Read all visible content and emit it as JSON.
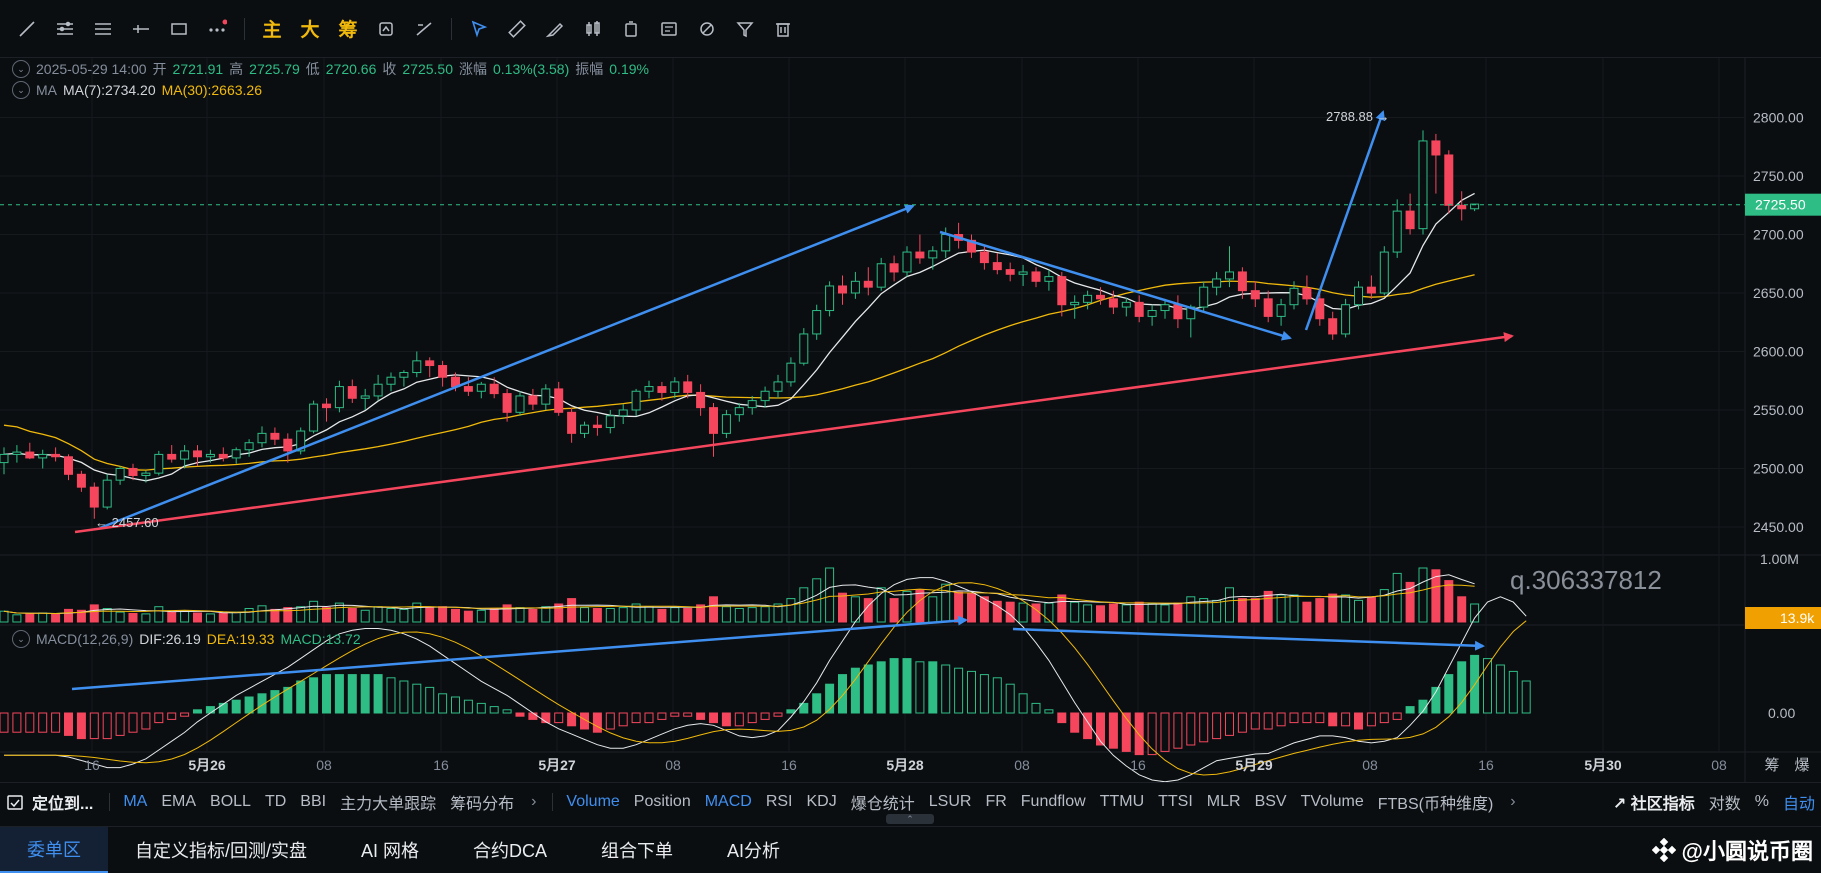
{
  "toolbar": {
    "icons": [
      "trend-line-icon",
      "fib-icon",
      "parallel-icon",
      "horizontal-ray-icon",
      "rectangle-icon",
      "more-icon"
    ],
    "text_tools": [
      "主",
      "大",
      "筹"
    ],
    "icons2": [
      "magnet-icon",
      "measure-icon",
      "select-icon",
      "ruler-icon",
      "brush-icon",
      "candle-icon",
      "bag-icon",
      "note-icon",
      "link-icon",
      "filter-icon",
      "trash-icon"
    ]
  },
  "info": {
    "datetime": "2025-05-29 14:00",
    "open_label": "开",
    "open": "2721.91",
    "high_label": "高",
    "high": "2725.79",
    "low_label": "低",
    "low": "2720.66",
    "close_label": "收",
    "close": "2725.50",
    "change_label": "涨幅",
    "change": "0.13%(3.58)",
    "amp_label": "振幅",
    "amp": "0.19%",
    "ma_label": "MA",
    "ma7": "MA(7):2734.20",
    "ma30": "MA(30):2663.26",
    "macd_label": "MACD(12,26,9)",
    "dif": "DIF:26.19",
    "dea": "DEA:19.33",
    "macd": "MACD:13.72"
  },
  "chart_data": {
    "type": "candlestick",
    "interval": "1h",
    "price_axis": {
      "ticks": [
        2450,
        2500,
        2550,
        2600,
        2650,
        2700,
        2750,
        2800
      ],
      "labels": [
        "2450.00",
        "2500.00",
        "2550.00",
        "2600.00",
        "2650.00",
        "2700.00",
        "2750.00",
        "2800.00"
      ],
      "range": [
        2432,
        2815
      ]
    },
    "volume_axis": {
      "ticks": [
        "1.00M"
      ],
      "range": [
        0,
        1000000
      ]
    },
    "macd_axis": {
      "ticks": [
        "0.00"
      ]
    },
    "current_price": "2725.50",
    "current_volume": "13.9k",
    "high_marker": "2788.88",
    "low_marker": "2457.60",
    "watermark": "q.306337812",
    "x_labels": [
      "16",
      "5月26",
      "08",
      "16",
      "5月27",
      "08",
      "16",
      "5月28",
      "08",
      "16",
      "5月29",
      "08",
      "16",
      "5月30",
      "08"
    ],
    "right_labels": [
      "筹",
      "爆"
    ],
    "candles": [
      [
        2505,
        2518,
        2495,
        2512
      ],
      [
        2512,
        2520,
        2505,
        2514
      ],
      [
        2514,
        2522,
        2508,
        2509
      ],
      [
        2509,
        2516,
        2500,
        2512
      ],
      [
        2512,
        2518,
        2506,
        2510
      ],
      [
        2510,
        2512,
        2490,
        2495
      ],
      [
        2495,
        2498,
        2480,
        2484
      ],
      [
        2484,
        2488,
        2457,
        2467
      ],
      [
        2467,
        2495,
        2465,
        2490
      ],
      [
        2490,
        2502,
        2486,
        2500
      ],
      [
        2500,
        2504,
        2490,
        2494
      ],
      [
        2494,
        2498,
        2488,
        2496
      ],
      [
        2496,
        2515,
        2494,
        2512
      ],
      [
        2512,
        2520,
        2505,
        2508
      ],
      [
        2508,
        2520,
        2500,
        2515
      ],
      [
        2515,
        2520,
        2502,
        2510
      ],
      [
        2510,
        2516,
        2505,
        2512
      ],
      [
        2512,
        2518,
        2506,
        2509
      ],
      [
        2509,
        2518,
        2504,
        2516
      ],
      [
        2516,
        2525,
        2510,
        2522
      ],
      [
        2522,
        2536,
        2518,
        2530
      ],
      [
        2530,
        2535,
        2520,
        2525
      ],
      [
        2525,
        2530,
        2505,
        2515
      ],
      [
        2515,
        2535,
        2512,
        2532
      ],
      [
        2532,
        2558,
        2530,
        2555
      ],
      [
        2555,
        2560,
        2540,
        2552
      ],
      [
        2552,
        2575,
        2548,
        2570
      ],
      [
        2570,
        2576,
        2556,
        2560
      ],
      [
        2560,
        2568,
        2550,
        2562
      ],
      [
        2562,
        2580,
        2558,
        2572
      ],
      [
        2572,
        2582,
        2566,
        2578
      ],
      [
        2578,
        2584,
        2570,
        2582
      ],
      [
        2582,
        2600,
        2578,
        2592
      ],
      [
        2592,
        2595,
        2578,
        2588
      ],
      [
        2588,
        2592,
        2570,
        2578
      ],
      [
        2578,
        2582,
        2566,
        2570
      ],
      [
        2570,
        2578,
        2562,
        2566
      ],
      [
        2566,
        2574,
        2560,
        2572
      ],
      [
        2572,
        2578,
        2560,
        2564
      ],
      [
        2564,
        2568,
        2540,
        2548
      ],
      [
        2548,
        2566,
        2545,
        2562
      ],
      [
        2562,
        2568,
        2550,
        2555
      ],
      [
        2555,
        2572,
        2550,
        2568
      ],
      [
        2568,
        2574,
        2545,
        2548
      ],
      [
        2548,
        2552,
        2522,
        2530
      ],
      [
        2530,
        2540,
        2526,
        2537
      ],
      [
        2537,
        2545,
        2528,
        2535
      ],
      [
        2535,
        2550,
        2530,
        2545
      ],
      [
        2545,
        2555,
        2538,
        2550
      ],
      [
        2550,
        2568,
        2545,
        2566
      ],
      [
        2566,
        2575,
        2560,
        2570
      ],
      [
        2570,
        2574,
        2558,
        2565
      ],
      [
        2565,
        2578,
        2560,
        2574
      ],
      [
        2574,
        2580,
        2560,
        2565
      ],
      [
        2565,
        2572,
        2545,
        2552
      ],
      [
        2552,
        2556,
        2510,
        2530
      ],
      [
        2530,
        2550,
        2526,
        2546
      ],
      [
        2546,
        2556,
        2540,
        2552
      ],
      [
        2552,
        2562,
        2546,
        2558
      ],
      [
        2558,
        2570,
        2552,
        2566
      ],
      [
        2566,
        2580,
        2560,
        2574
      ],
      [
        2574,
        2595,
        2570,
        2590
      ],
      [
        2590,
        2620,
        2588,
        2615
      ],
      [
        2615,
        2640,
        2610,
        2635
      ],
      [
        2635,
        2660,
        2630,
        2656
      ],
      [
        2656,
        2665,
        2640,
        2650
      ],
      [
        2650,
        2668,
        2645,
        2660
      ],
      [
        2660,
        2672,
        2648,
        2655
      ],
      [
        2655,
        2680,
        2652,
        2675
      ],
      [
        2675,
        2682,
        2660,
        2668
      ],
      [
        2668,
        2690,
        2664,
        2685
      ],
      [
        2685,
        2700,
        2675,
        2680
      ],
      [
        2680,
        2690,
        2670,
        2686
      ],
      [
        2686,
        2706,
        2680,
        2700
      ],
      [
        2700,
        2710,
        2688,
        2695
      ],
      [
        2695,
        2700,
        2680,
        2685
      ],
      [
        2685,
        2690,
        2670,
        2676
      ],
      [
        2676,
        2684,
        2666,
        2670
      ],
      [
        2670,
        2676,
        2660,
        2666
      ],
      [
        2666,
        2674,
        2656,
        2668
      ],
      [
        2668,
        2672,
        2655,
        2660
      ],
      [
        2660,
        2670,
        2652,
        2664
      ],
      [
        2664,
        2668,
        2630,
        2640
      ],
      [
        2640,
        2648,
        2628,
        2642
      ],
      [
        2642,
        2652,
        2636,
        2648
      ],
      [
        2648,
        2655,
        2640,
        2645
      ],
      [
        2645,
        2652,
        2632,
        2638
      ],
      [
        2638,
        2646,
        2630,
        2642
      ],
      [
        2642,
        2648,
        2625,
        2630
      ],
      [
        2630,
        2640,
        2622,
        2635
      ],
      [
        2635,
        2645,
        2628,
        2640
      ],
      [
        2640,
        2648,
        2620,
        2628
      ],
      [
        2628,
        2640,
        2612,
        2638
      ],
      [
        2638,
        2660,
        2634,
        2655
      ],
      [
        2655,
        2668,
        2648,
        2662
      ],
      [
        2662,
        2690,
        2655,
        2668
      ],
      [
        2668,
        2672,
        2645,
        2652
      ],
      [
        2652,
        2660,
        2638,
        2645
      ],
      [
        2645,
        2652,
        2625,
        2630
      ],
      [
        2630,
        2645,
        2622,
        2640
      ],
      [
        2640,
        2660,
        2636,
        2654
      ],
      [
        2654,
        2665,
        2640,
        2645
      ],
      [
        2645,
        2650,
        2622,
        2628
      ],
      [
        2628,
        2634,
        2610,
        2615
      ],
      [
        2615,
        2645,
        2612,
        2640
      ],
      [
        2640,
        2660,
        2636,
        2655
      ],
      [
        2655,
        2665,
        2645,
        2650
      ],
      [
        2650,
        2690,
        2648,
        2685
      ],
      [
        2685,
        2730,
        2680,
        2720
      ],
      [
        2720,
        2735,
        2700,
        2705
      ],
      [
        2705,
        2789,
        2700,
        2780
      ],
      [
        2780,
        2786,
        2735,
        2768
      ],
      [
        2768,
        2772,
        2718,
        2725
      ],
      [
        2725,
        2737,
        2712,
        2722
      ],
      [
        2722,
        2726,
        2720,
        2726
      ]
    ],
    "volumes": [
      120,
      80,
      90,
      100,
      85,
      140,
      130,
      190,
      150,
      110,
      95,
      90,
      170,
      110,
      120,
      100,
      90,
      95,
      110,
      150,
      180,
      140,
      160,
      170,
      230,
      160,
      210,
      150,
      130,
      170,
      150,
      140,
      210,
      160,
      170,
      140,
      120,
      130,
      150,
      190,
      160,
      140,
      170,
      200,
      260,
      160,
      150,
      150,
      160,
      200,
      170,
      140,
      160,
      150,
      190,
      280,
      170,
      150,
      160,
      170,
      200,
      260,
      380,
      480,
      600,
      320,
      280,
      260,
      380,
      260,
      340,
      360,
      280,
      420,
      330,
      320,
      280,
      230,
      220,
      210,
      200,
      210,
      300,
      220,
      190,
      180,
      200,
      190,
      220,
      200,
      190,
      210,
      280,
      260,
      240,
      380,
      260,
      260,
      340,
      300,
      300,
      220,
      260,
      310,
      300,
      240,
      280,
      360,
      540,
      440,
      600,
      580,
      460,
      280,
      200
    ],
    "macd_hist": [
      -6,
      -6,
      -6,
      -6,
      -6,
      -7,
      -8,
      -8,
      -8,
      -7,
      -6,
      -5,
      -3,
      -2,
      -1,
      1,
      2,
      3,
      4,
      5,
      6,
      7,
      8,
      10,
      11,
      12,
      12,
      12,
      12,
      12,
      11,
      10,
      9,
      8,
      6,
      5,
      4,
      3,
      2,
      1,
      -1,
      -2,
      -3,
      -3,
      -4,
      -5,
      -6,
      -5,
      -4,
      -3,
      -3,
      -2,
      -1,
      -1,
      -2,
      -3,
      -4,
      -4,
      -3,
      -2,
      -1,
      1,
      3,
      6,
      9,
      12,
      14,
      15,
      16,
      17,
      17,
      16,
      16,
      15,
      14,
      13,
      12,
      11,
      9,
      6,
      3,
      1,
      -3,
      -6,
      -8,
      -10,
      -11,
      -12,
      -13,
      -13,
      -12,
      -11,
      -10,
      -9,
      -8,
      -7,
      -6,
      -5,
      -5,
      -4,
      -3,
      -3,
      -3,
      -4,
      -4,
      -5,
      -4,
      -3,
      -2,
      2,
      4,
      8,
      12,
      16,
      18,
      17,
      15,
      13,
      10
    ],
    "annotations": [
      "blue-arrow-1",
      "blue-arrow-2",
      "blue-arrow-3",
      "red-trend-line",
      "macd-blue-arrow-1",
      "macd-blue-arrow-2",
      "macd-blue-arrow-3"
    ]
  },
  "indicators": {
    "locate": "定位到...",
    "main": [
      "MA",
      "EMA",
      "BOLL",
      "TD",
      "BBI",
      "主力大单跟踪",
      "筹码分布"
    ],
    "main_on": "MA",
    "sub": [
      "Volume",
      "Position",
      "MACD",
      "RSI",
      "KDJ",
      "爆仓统计",
      "LSUR",
      "FR",
      "Fundflow",
      "TTMU",
      "TTSI",
      "MLR",
      "BSV",
      "TVolume",
      "FTBS(币种维度)"
    ],
    "sub_on": [
      "Volume",
      "MACD"
    ],
    "community": "社区指标",
    "log": "对数",
    "pct": "%",
    "auto": "自动"
  },
  "tabs": [
    "委单区",
    "自定义指标/回测/实盘",
    "AI 网格",
    "合约DCA",
    "组合下单",
    "AI分析"
  ],
  "active_tab": "委单区",
  "watermark_brand": "@小圆说币圈"
}
